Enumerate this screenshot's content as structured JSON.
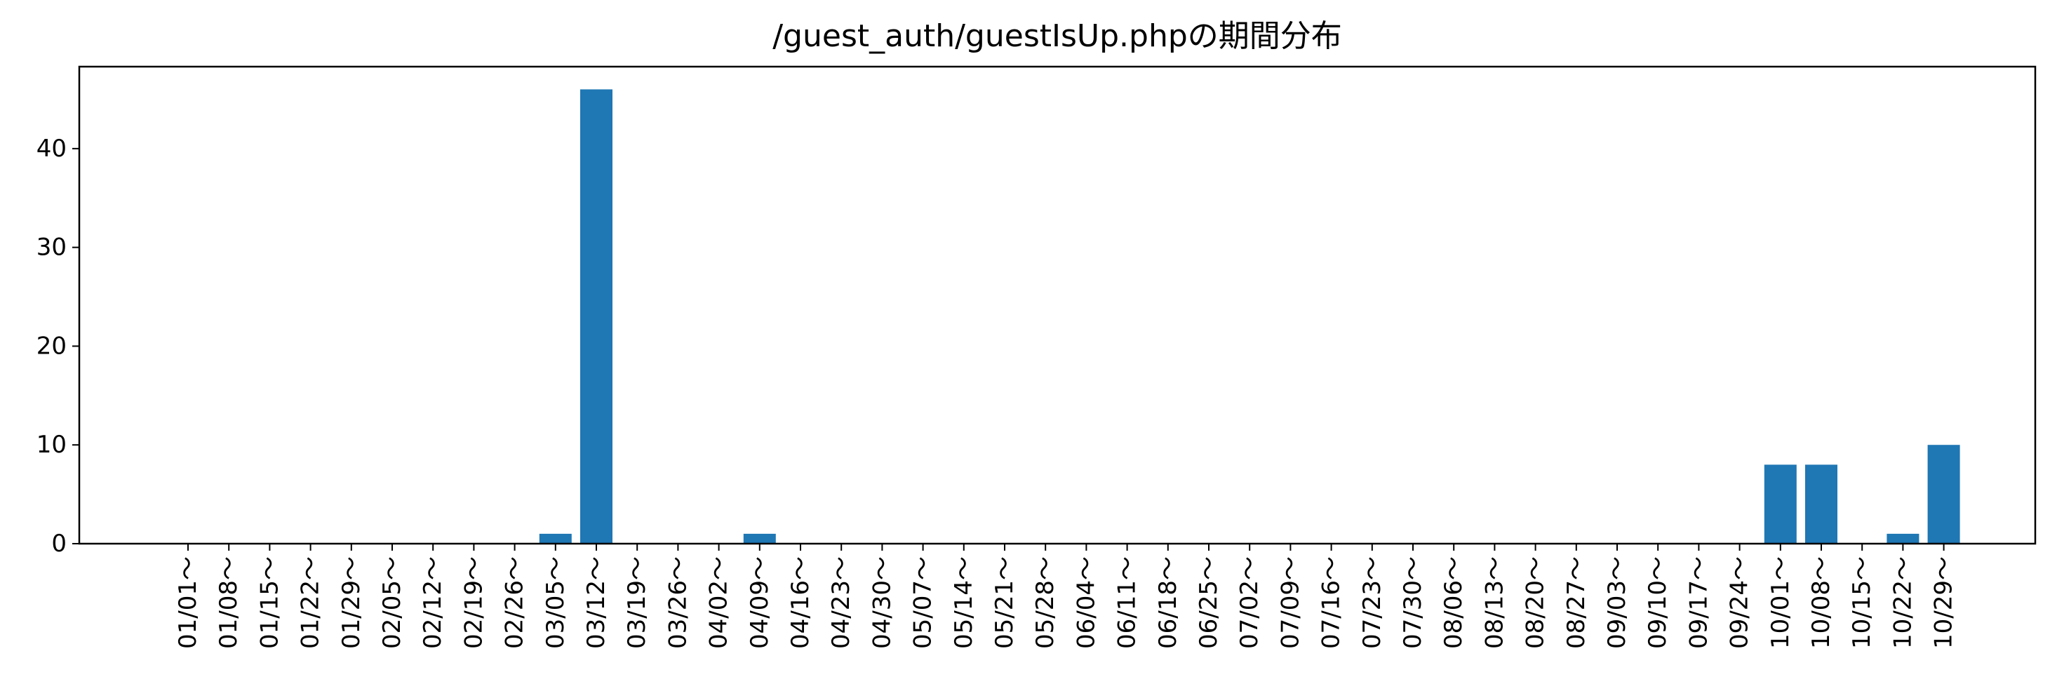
{
  "chart_data": {
    "type": "bar",
    "title": "/guest_auth/guestIsUp.phpの期間分布",
    "xlabel": "",
    "ylabel": "",
    "categories": [
      "01/01～",
      "01/08～",
      "01/15～",
      "01/22～",
      "01/29～",
      "02/05～",
      "02/12～",
      "02/19～",
      "02/26～",
      "03/05～",
      "03/12～",
      "03/19～",
      "03/26～",
      "04/02～",
      "04/09～",
      "04/16～",
      "04/23～",
      "04/30～",
      "05/07～",
      "05/14～",
      "05/21～",
      "05/28～",
      "06/04～",
      "06/11～",
      "06/18～",
      "06/25～",
      "07/02～",
      "07/09～",
      "07/16～",
      "07/23～",
      "07/30～",
      "08/06～",
      "08/13～",
      "08/20～",
      "08/27～",
      "09/03～",
      "09/10～",
      "09/17～",
      "09/24～",
      "10/01～",
      "10/08～",
      "10/15～",
      "10/22～",
      "10/29～"
    ],
    "values": [
      0,
      0,
      0,
      0,
      0,
      0,
      0,
      0,
      0,
      1,
      46,
      0,
      0,
      0,
      1,
      0,
      0,
      0,
      0,
      0,
      0,
      0,
      0,
      0,
      0,
      0,
      0,
      0,
      0,
      0,
      0,
      0,
      0,
      0,
      0,
      0,
      0,
      0,
      0,
      8,
      8,
      0,
      1,
      10
    ],
    "ylim": [
      0,
      48.3
    ],
    "yticks": [
      0,
      10,
      20,
      30,
      40
    ],
    "bar_color": "#1f77b4",
    "grid": false,
    "legend": "none"
  }
}
